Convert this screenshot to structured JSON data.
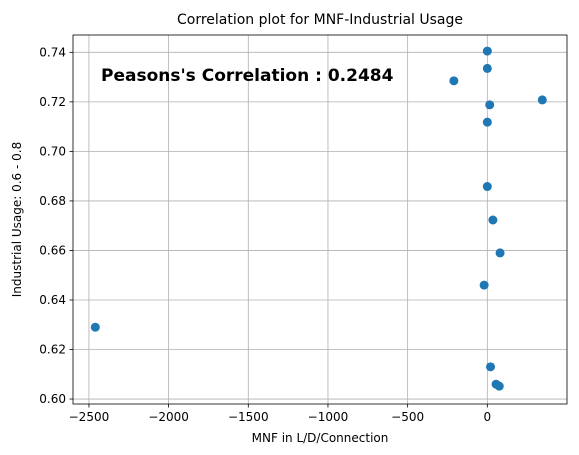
{
  "chart_data": {
    "type": "scatter",
    "title": "Correlation plot for MNF-Industrial Usage",
    "xlabel": "MNF in L/D/Connection",
    "ylabel": "Industrial Usage: 0.6 - 0.8",
    "annotation": "Peasons's Correlation : 0.2484",
    "xlim": [
      -2600,
      500
    ],
    "ylim": [
      0.598,
      0.747
    ],
    "xticks": [
      -2500,
      -2000,
      -1500,
      -1000,
      -500,
      0
    ],
    "xtick_labels": [
      "−2500",
      "−2000",
      "−1500",
      "−1000",
      "−500",
      "0"
    ],
    "yticks": [
      0.6,
      0.62,
      0.64,
      0.66,
      0.68,
      0.7,
      0.72,
      0.74
    ],
    "ytick_labels": [
      "0.60",
      "0.62",
      "0.64",
      "0.66",
      "0.68",
      "0.70",
      "0.72",
      "0.74"
    ],
    "grid": true,
    "marker_color": "#1f77b4",
    "points": [
      {
        "x": -2460,
        "y": 0.629
      },
      {
        "x": -210,
        "y": 0.7285
      },
      {
        "x": -20,
        "y": 0.646
      },
      {
        "x": 0,
        "y": 0.7405
      },
      {
        "x": 0,
        "y": 0.7335
      },
      {
        "x": 0,
        "y": 0.7118
      },
      {
        "x": 0,
        "y": 0.6858
      },
      {
        "x": 15,
        "y": 0.7188
      },
      {
        "x": 20,
        "y": 0.613
      },
      {
        "x": 35,
        "y": 0.6723
      },
      {
        "x": 55,
        "y": 0.606
      },
      {
        "x": 75,
        "y": 0.6052
      },
      {
        "x": 80,
        "y": 0.659
      },
      {
        "x": 345,
        "y": 0.7208
      }
    ]
  }
}
